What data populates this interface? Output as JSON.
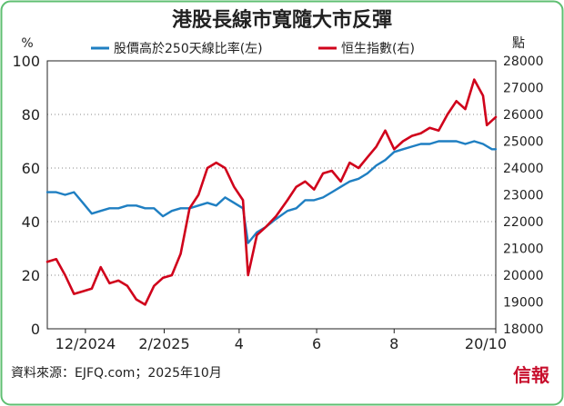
{
  "chart_data": {
    "type": "line",
    "title": "港股長線市寬隨大市反彈",
    "y_left_unit": "%",
    "y_right_unit": "點",
    "y_left_range": [
      0,
      100
    ],
    "y_right_range": [
      18000,
      28000
    ],
    "y_left_ticks": [
      "0",
      "20",
      "40",
      "60",
      "80",
      "100"
    ],
    "y_right_ticks": [
      "18000",
      "19000",
      "20000",
      "21000",
      "22000",
      "23000",
      "24000",
      "25000",
      "26000",
      "27000",
      "28000"
    ],
    "x_tick_labels": [
      "12/2024",
      "2/2025",
      "4",
      "6",
      "8",
      "20/10"
    ],
    "x_range": [
      "2024-11-01",
      "2025-10-20"
    ],
    "grid": true,
    "legend_position": "top",
    "series": [
      {
        "name": "股價高於250天線比率(左)",
        "axis": "left",
        "color": "#1f7fc2",
        "points": [
          [
            "2024-11-01",
            51
          ],
          [
            "2024-11-08",
            51
          ],
          [
            "2024-11-15",
            50
          ],
          [
            "2024-11-22",
            51
          ],
          [
            "2024-11-29",
            47
          ],
          [
            "2024-12-06",
            43
          ],
          [
            "2024-12-13",
            44
          ],
          [
            "2024-12-20",
            45
          ],
          [
            "2024-12-27",
            45
          ],
          [
            "2025-01-03",
            46
          ],
          [
            "2025-01-10",
            46
          ],
          [
            "2025-01-17",
            45
          ],
          [
            "2025-01-24",
            45
          ],
          [
            "2025-01-31",
            42
          ],
          [
            "2025-02-07",
            44
          ],
          [
            "2025-02-14",
            45
          ],
          [
            "2025-02-21",
            45
          ],
          [
            "2025-02-28",
            46
          ],
          [
            "2025-03-07",
            47
          ],
          [
            "2025-03-14",
            46
          ],
          [
            "2025-03-21",
            49
          ],
          [
            "2025-03-28",
            47
          ],
          [
            "2025-04-04",
            45
          ],
          [
            "2025-04-08",
            32
          ],
          [
            "2025-04-15",
            36
          ],
          [
            "2025-04-22",
            38
          ],
          [
            "2025-04-30",
            41
          ],
          [
            "2025-05-09",
            44
          ],
          [
            "2025-05-16",
            45
          ],
          [
            "2025-05-23",
            48
          ],
          [
            "2025-05-30",
            48
          ],
          [
            "2025-06-06",
            49
          ],
          [
            "2025-06-13",
            51
          ],
          [
            "2025-06-20",
            53
          ],
          [
            "2025-06-27",
            55
          ],
          [
            "2025-07-04",
            56
          ],
          [
            "2025-07-11",
            58
          ],
          [
            "2025-07-18",
            61
          ],
          [
            "2025-07-25",
            63
          ],
          [
            "2025-08-01",
            66
          ],
          [
            "2025-08-08",
            67
          ],
          [
            "2025-08-15",
            68
          ],
          [
            "2025-08-22",
            69
          ],
          [
            "2025-08-29",
            69
          ],
          [
            "2025-09-05",
            70
          ],
          [
            "2025-09-12",
            70
          ],
          [
            "2025-09-19",
            70
          ],
          [
            "2025-09-26",
            69
          ],
          [
            "2025-10-03",
            70
          ],
          [
            "2025-10-10",
            69
          ],
          [
            "2025-10-17",
            67
          ],
          [
            "2025-10-20",
            67
          ]
        ]
      },
      {
        "name": "恒生指數(右)",
        "axis": "right",
        "color": "#d0021b",
        "points": [
          [
            "2024-11-01",
            20500
          ],
          [
            "2024-11-08",
            20600
          ],
          [
            "2024-11-15",
            20000
          ],
          [
            "2024-11-22",
            19300
          ],
          [
            "2024-11-29",
            19400
          ],
          [
            "2024-12-06",
            19500
          ],
          [
            "2024-12-13",
            20300
          ],
          [
            "2024-12-20",
            19700
          ],
          [
            "2024-12-27",
            19800
          ],
          [
            "2025-01-03",
            19600
          ],
          [
            "2025-01-10",
            19100
          ],
          [
            "2025-01-17",
            18900
          ],
          [
            "2025-01-24",
            19600
          ],
          [
            "2025-01-31",
            19900
          ],
          [
            "2025-02-07",
            20000
          ],
          [
            "2025-02-14",
            20800
          ],
          [
            "2025-02-21",
            22500
          ],
          [
            "2025-02-28",
            23000
          ],
          [
            "2025-03-07",
            24000
          ],
          [
            "2025-03-14",
            24200
          ],
          [
            "2025-03-21",
            24000
          ],
          [
            "2025-03-28",
            23300
          ],
          [
            "2025-04-04",
            22800
          ],
          [
            "2025-04-08",
            20000
          ],
          [
            "2025-04-15",
            21500
          ],
          [
            "2025-04-22",
            21800
          ],
          [
            "2025-04-30",
            22200
          ],
          [
            "2025-05-09",
            22800
          ],
          [
            "2025-05-16",
            23300
          ],
          [
            "2025-05-23",
            23500
          ],
          [
            "2025-05-30",
            23200
          ],
          [
            "2025-06-06",
            23800
          ],
          [
            "2025-06-13",
            23900
          ],
          [
            "2025-06-20",
            23500
          ],
          [
            "2025-06-27",
            24200
          ],
          [
            "2025-07-04",
            24000
          ],
          [
            "2025-07-11",
            24400
          ],
          [
            "2025-07-18",
            24800
          ],
          [
            "2025-07-25",
            25400
          ],
          [
            "2025-08-01",
            24700
          ],
          [
            "2025-08-08",
            25000
          ],
          [
            "2025-08-15",
            25200
          ],
          [
            "2025-08-22",
            25300
          ],
          [
            "2025-08-29",
            25500
          ],
          [
            "2025-09-05",
            25400
          ],
          [
            "2025-09-12",
            26000
          ],
          [
            "2025-09-19",
            26500
          ],
          [
            "2025-09-26",
            26200
          ],
          [
            "2025-10-03",
            27300
          ],
          [
            "2025-10-10",
            26700
          ],
          [
            "2025-10-13",
            25600
          ],
          [
            "2025-10-20",
            25900
          ]
        ]
      }
    ]
  },
  "footer": {
    "source": "資料來源：EJFQ.com；2025年10月",
    "brand": "信報"
  }
}
